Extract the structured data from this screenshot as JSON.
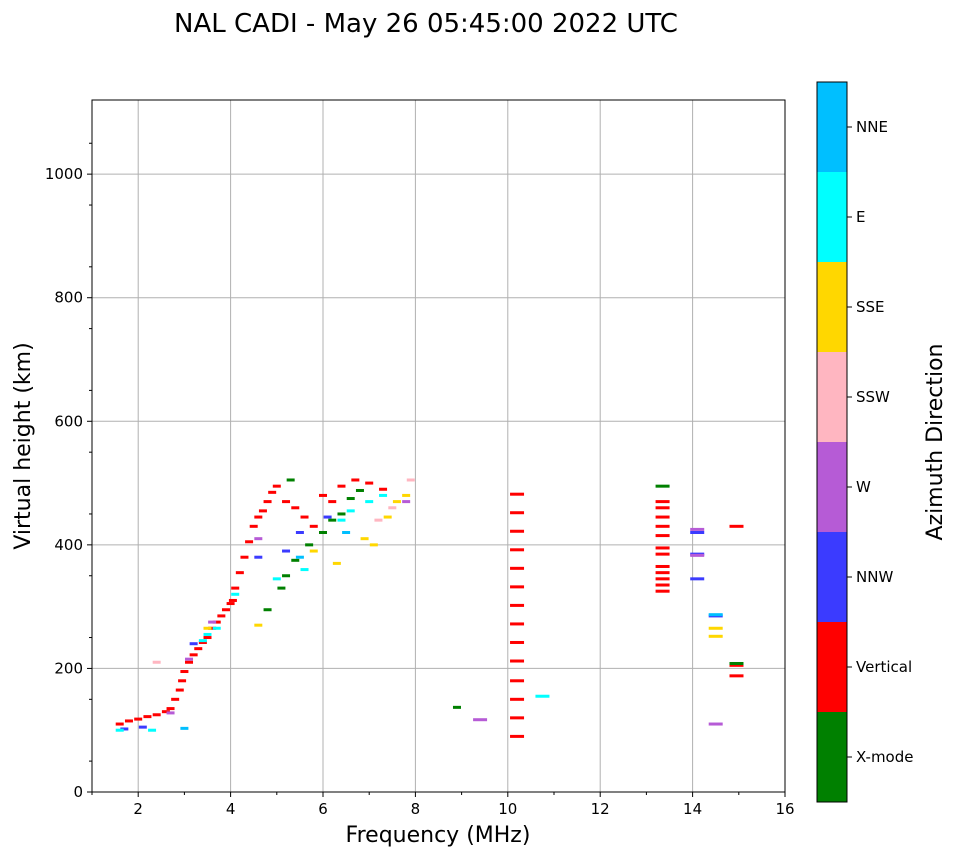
{
  "chart_data": {
    "type": "scatter",
    "title": "NAL CADI - May 26 05:45:00 2022 UTC",
    "xlabel": "Frequency (MHz)",
    "ylabel": "Virtual height (km)",
    "xlim": [
      1,
      16
    ],
    "ylim": [
      0,
      1120
    ],
    "xticks": [
      "2",
      "4",
      "6",
      "8",
      "10",
      "12",
      "14",
      "16"
    ],
    "yticks": [
      "0",
      "200",
      "400",
      "600",
      "800",
      "1000"
    ],
    "grid": true,
    "colorbar": {
      "label": "Azimuth Direction",
      "categories": [
        {
          "name": "X-mode",
          "color": "#008000"
        },
        {
          "name": "Vertical",
          "color": "#ff0000"
        },
        {
          "name": "NNW",
          "color": "#3b3bff"
        },
        {
          "name": "W",
          "color": "#b65bd6"
        },
        {
          "name": "SSW",
          "color": "#ffb6c1"
        },
        {
          "name": "SSE",
          "color": "#ffd700"
        },
        {
          "name": "E",
          "color": "#00ffff"
        },
        {
          "name": "NNE",
          "color": "#00bfff"
        }
      ]
    },
    "series": [
      {
        "name": "Vertical",
        "color": "#ff0000",
        "points": [
          [
            1.6,
            110
          ],
          [
            1.8,
            115
          ],
          [
            2.0,
            118
          ],
          [
            2.2,
            122
          ],
          [
            2.4,
            125
          ],
          [
            2.6,
            130
          ],
          [
            2.7,
            135
          ],
          [
            2.8,
            150
          ],
          [
            2.9,
            165
          ],
          [
            2.95,
            180
          ],
          [
            3.0,
            195
          ],
          [
            3.1,
            210
          ],
          [
            3.2,
            222
          ],
          [
            3.3,
            232
          ],
          [
            3.4,
            242
          ],
          [
            3.5,
            250
          ],
          [
            3.6,
            265
          ],
          [
            3.7,
            275
          ],
          [
            3.8,
            285
          ],
          [
            3.9,
            295
          ],
          [
            4.0,
            305
          ],
          [
            4.05,
            310
          ],
          [
            4.1,
            330
          ],
          [
            4.2,
            355
          ],
          [
            4.3,
            380
          ],
          [
            4.4,
            405
          ],
          [
            4.5,
            430
          ],
          [
            4.6,
            445
          ],
          [
            4.7,
            455
          ],
          [
            4.8,
            470
          ],
          [
            4.9,
            485
          ],
          [
            5.0,
            495
          ],
          [
            5.2,
            470
          ],
          [
            5.4,
            460
          ],
          [
            5.6,
            445
          ],
          [
            5.8,
            430
          ],
          [
            6.0,
            480
          ],
          [
            6.2,
            470
          ],
          [
            6.4,
            495
          ],
          [
            6.7,
            505
          ],
          [
            7.0,
            500
          ],
          [
            7.3,
            490
          ],
          [
            10.2,
            90
          ],
          [
            10.2,
            120
          ],
          [
            10.2,
            150
          ],
          [
            10.2,
            180
          ],
          [
            10.2,
            212
          ],
          [
            10.2,
            242
          ],
          [
            10.2,
            272
          ],
          [
            10.2,
            302
          ],
          [
            10.2,
            332
          ],
          [
            10.2,
            362
          ],
          [
            10.2,
            392
          ],
          [
            10.2,
            422
          ],
          [
            10.2,
            452
          ],
          [
            10.2,
            482
          ],
          [
            13.35,
            325
          ],
          [
            13.35,
            335
          ],
          [
            13.35,
            345
          ],
          [
            13.35,
            355
          ],
          [
            13.35,
            365
          ],
          [
            13.35,
            385
          ],
          [
            13.35,
            395
          ],
          [
            13.35,
            415
          ],
          [
            13.35,
            430
          ],
          [
            13.35,
            445
          ],
          [
            13.35,
            460
          ],
          [
            13.35,
            470
          ],
          [
            14.95,
            188
          ],
          [
            14.95,
            205
          ],
          [
            14.95,
            430
          ]
        ]
      },
      {
        "name": "X-mode",
        "color": "#008000",
        "points": [
          [
            4.8,
            295
          ],
          [
            5.1,
            330
          ],
          [
            5.2,
            350
          ],
          [
            5.4,
            375
          ],
          [
            5.7,
            400
          ],
          [
            6.0,
            420
          ],
          [
            6.2,
            440
          ],
          [
            6.4,
            450
          ],
          [
            6.6,
            475
          ],
          [
            6.8,
            488
          ],
          [
            5.3,
            505
          ],
          [
            8.9,
            137
          ],
          [
            13.35,
            495
          ],
          [
            14.95,
            208
          ]
        ]
      },
      {
        "name": "NNW",
        "color": "#3b3bff",
        "points": [
          [
            1.7,
            102
          ],
          [
            2.1,
            105
          ],
          [
            3.2,
            240
          ],
          [
            4.6,
            380
          ],
          [
            5.2,
            390
          ],
          [
            5.5,
            420
          ],
          [
            6.1,
            445
          ],
          [
            14.1,
            420
          ],
          [
            14.1,
            385
          ],
          [
            14.1,
            345
          ],
          [
            14.5,
            285
          ]
        ]
      },
      {
        "name": "W",
        "color": "#b65bd6",
        "points": [
          [
            2.7,
            128
          ],
          [
            3.1,
            215
          ],
          [
            3.6,
            275
          ],
          [
            4.6,
            410
          ],
          [
            7.8,
            470
          ],
          [
            9.4,
            117
          ],
          [
            14.1,
            425
          ],
          [
            14.1,
            383
          ],
          [
            14.5,
            110
          ]
        ]
      },
      {
        "name": "SSW",
        "color": "#ffb6c1",
        "points": [
          [
            2.4,
            210
          ],
          [
            7.2,
            440
          ],
          [
            7.5,
            460
          ],
          [
            7.9,
            505
          ]
        ]
      },
      {
        "name": "SSE",
        "color": "#ffd700",
        "points": [
          [
            3.5,
            265
          ],
          [
            4.6,
            270
          ],
          [
            5.8,
            390
          ],
          [
            6.3,
            370
          ],
          [
            6.9,
            410
          ],
          [
            7.1,
            400
          ],
          [
            7.4,
            445
          ],
          [
            7.6,
            470
          ],
          [
            7.8,
            480
          ],
          [
            14.5,
            265
          ],
          [
            14.5,
            252
          ]
        ]
      },
      {
        "name": "E",
        "color": "#00ffff",
        "points": [
          [
            1.6,
            100
          ],
          [
            2.3,
            100
          ],
          [
            3.4,
            245
          ],
          [
            3.5,
            255
          ],
          [
            3.7,
            265
          ],
          [
            4.1,
            320
          ],
          [
            5.0,
            345
          ],
          [
            5.6,
            360
          ],
          [
            6.4,
            440
          ],
          [
            6.6,
            455
          ],
          [
            7.0,
            470
          ],
          [
            7.3,
            480
          ],
          [
            10.75,
            155
          ]
        ]
      },
      {
        "name": "NNE",
        "color": "#00bfff",
        "points": [
          [
            3.0,
            103
          ],
          [
            5.5,
            380
          ],
          [
            6.5,
            420
          ],
          [
            14.5,
            287
          ]
        ]
      }
    ]
  }
}
